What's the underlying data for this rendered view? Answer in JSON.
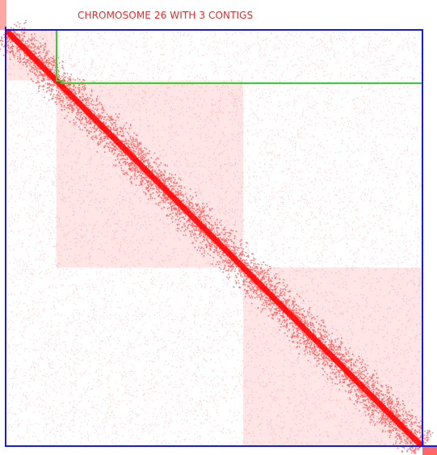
{
  "title": "CHROMOSOME 26 WITH 3 CONTIGS",
  "colors": {
    "title": "#e52a2a",
    "contact": "#ff0000",
    "chromosome_outline": "#1a1adb",
    "contig_outline": "#2fd12f",
    "background": "#ffffff"
  },
  "heatmap": {
    "type": "hi-c-contact-map",
    "chromosome": "26",
    "contig_count": 3,
    "contigs": [
      {
        "index": 1,
        "start_fraction": 0.0,
        "end_fraction": 0.12
      },
      {
        "index": 2,
        "start_fraction": 0.12,
        "end_fraction": 0.57
      },
      {
        "index": 3,
        "start_fraction": 0.57,
        "end_fraction": 1.0
      }
    ]
  }
}
